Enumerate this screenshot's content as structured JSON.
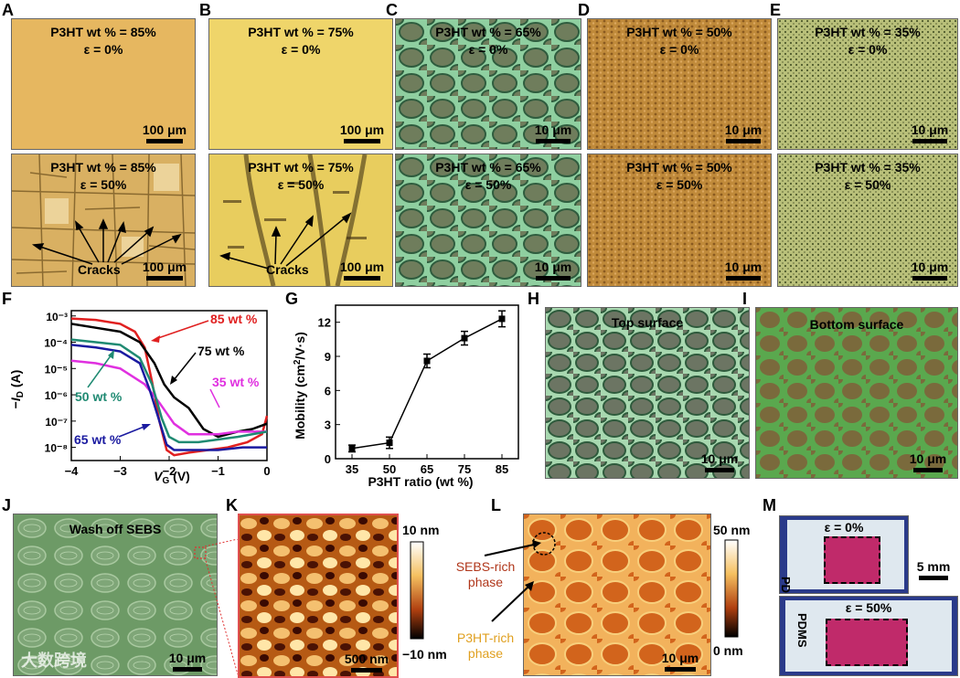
{
  "panel_letters": {
    "A": "A",
    "B": "B",
    "C": "C",
    "D": "D",
    "E": "E",
    "F": "F",
    "G": "G",
    "H": "H",
    "I": "I",
    "J": "J",
    "K": "K",
    "L": "L",
    "M": "M"
  },
  "row1": {
    "A_top": {
      "wt": "P3HT wt % = 85%",
      "strain": "ε = 0%",
      "scale": "100 μm"
    },
    "A_bot": {
      "wt": "P3HT wt % = 85%",
      "strain": "ε = 50%",
      "scale": "100 μm",
      "cracks": "Cracks"
    },
    "B_top": {
      "wt": "P3HT wt % = 75%",
      "strain": "ε = 0%",
      "scale": "100 μm"
    },
    "B_bot": {
      "wt": "P3HT wt % = 75%",
      "strain": "ε = 50%",
      "scale": "100 μm",
      "cracks": "Cracks"
    },
    "C_top": {
      "wt": "P3HT wt % = 65%",
      "strain": "ε = 0%",
      "scale": "10 μm"
    },
    "C_bot": {
      "wt": "P3HT wt % = 65%",
      "strain": "ε = 50%",
      "scale": "10 μm"
    },
    "D_top": {
      "wt": "P3HT wt % = 50%",
      "strain": "ε = 0%",
      "scale": "10 μm"
    },
    "D_bot": {
      "wt": "P3HT wt % = 50%",
      "strain": "ε = 50%",
      "scale": "10 μm"
    },
    "E_top": {
      "wt": "P3HT wt % = 35%",
      "strain": "ε = 0%",
      "scale": "10 μm"
    },
    "E_bot": {
      "wt": "P3HT wt % = 35%",
      "strain": "ε = 50%",
      "scale": "10 μm"
    }
  },
  "panel_H": {
    "label": "Top surface",
    "scale": "10 μm"
  },
  "panel_I": {
    "label": "Bottom surface",
    "scale": "10 μm"
  },
  "panel_J": {
    "label": "Wash off SEBS",
    "scale": "10 μm"
  },
  "panel_K": {
    "scale": "500 nm",
    "cb_max": "10 nm",
    "cb_min": "−10 nm"
  },
  "panel_L": {
    "scale": "10 μm",
    "cb_max": "50 nm",
    "cb_min": "0 nm",
    "sebs": [
      "SEBS-rich",
      "phase"
    ],
    "p3ht": [
      "P3HT-rich",
      "phase"
    ]
  },
  "panel_M": {
    "top_strain": "ε = 0%",
    "bot_strain": "ε = 50%",
    "pdms": "PDMS",
    "scale": "5 mm"
  },
  "watermark": "大数跨境",
  "chart_data": [
    {
      "panel": "F",
      "type": "line",
      "xlabel": "V_G (V)",
      "ylabel": "−I_D (A)",
      "xlim": [
        -4,
        0
      ],
      "ylim_log10": [
        -8.5,
        -2.8
      ],
      "x_ticks": [
        "−4",
        "−3",
        "−2",
        "−1",
        "0"
      ],
      "y_ticks": [
        "10⁻³",
        "10⁻⁴",
        "10⁻⁵",
        "10⁻⁶",
        "10⁻⁷",
        "10⁻⁸"
      ],
      "series": [
        {
          "name": "85 wt %",
          "color": "#e02020",
          "x": [
            -4,
            -3.5,
            -3,
            -2.7,
            -2.5,
            -2.35,
            -2.2,
            -2.05,
            -1.9,
            -1.6,
            -1.2,
            -0.8,
            -0.4,
            -0.1,
            0
          ],
          "log10_y": [
            -3.1,
            -3.15,
            -3.3,
            -3.6,
            -4.2,
            -5.5,
            -7.0,
            -8.1,
            -8.3,
            -8.2,
            -8.1,
            -8.0,
            -7.8,
            -7.5,
            -6.8
          ]
        },
        {
          "name": "75 wt %",
          "color": "#000000",
          "x": [
            -4,
            -3.5,
            -3,
            -2.6,
            -2.3,
            -2.1,
            -1.9,
            -1.6,
            -1.3,
            -1.0,
            -0.6,
            -0.3,
            0
          ],
          "log10_y": [
            -3.3,
            -3.45,
            -3.6,
            -4.0,
            -4.8,
            -5.6,
            -6.1,
            -6.5,
            -7.3,
            -7.6,
            -7.4,
            -7.3,
            -7.1
          ]
        },
        {
          "name": "35 wt %",
          "color": "#e030e0",
          "x": [
            -4,
            -3.5,
            -3,
            -2.5,
            -2.2,
            -1.9,
            -1.6,
            -1.3,
            -1.0,
            -0.6,
            0
          ],
          "log10_y": [
            -4.7,
            -4.8,
            -5.0,
            -5.6,
            -6.3,
            -7.1,
            -7.5,
            -7.5,
            -7.5,
            -7.4,
            -7.4
          ]
        },
        {
          "name": "50 wt %",
          "color": "#1f8a72",
          "x": [
            -4,
            -3.5,
            -3,
            -2.6,
            -2.35,
            -2.15,
            -2.0,
            -1.8,
            -1.4,
            -1.0,
            -0.6,
            0
          ],
          "log10_y": [
            -3.9,
            -4.0,
            -4.1,
            -4.6,
            -5.6,
            -6.9,
            -7.6,
            -7.8,
            -7.8,
            -7.7,
            -7.6,
            -7.4
          ]
        },
        {
          "name": "65 wt %",
          "color": "#1a1aa0",
          "x": [
            -4,
            -3.5,
            -3,
            -2.6,
            -2.4,
            -2.2,
            -2.05,
            -1.9,
            -1.5,
            -1.0,
            -0.5,
            0
          ],
          "log10_y": [
            -4.1,
            -4.2,
            -4.35,
            -4.8,
            -5.8,
            -7.0,
            -7.9,
            -8.1,
            -8.1,
            -8.1,
            -8.0,
            -8.0
          ]
        }
      ]
    },
    {
      "panel": "G",
      "type": "line",
      "xlabel": "P3HT ratio (wt %)",
      "ylabel": "Mobility (cm²/V·s)",
      "categories": [
        "35",
        "50",
        "65",
        "75",
        "85"
      ],
      "ylim": [
        0,
        13.5
      ],
      "y_ticks": [
        "0",
        "3",
        "6",
        "9",
        "12"
      ],
      "values": [
        0.9,
        1.4,
        8.6,
        10.6,
        12.3
      ],
      "errors": [
        0.3,
        0.5,
        0.6,
        0.6,
        0.7
      ]
    }
  ]
}
